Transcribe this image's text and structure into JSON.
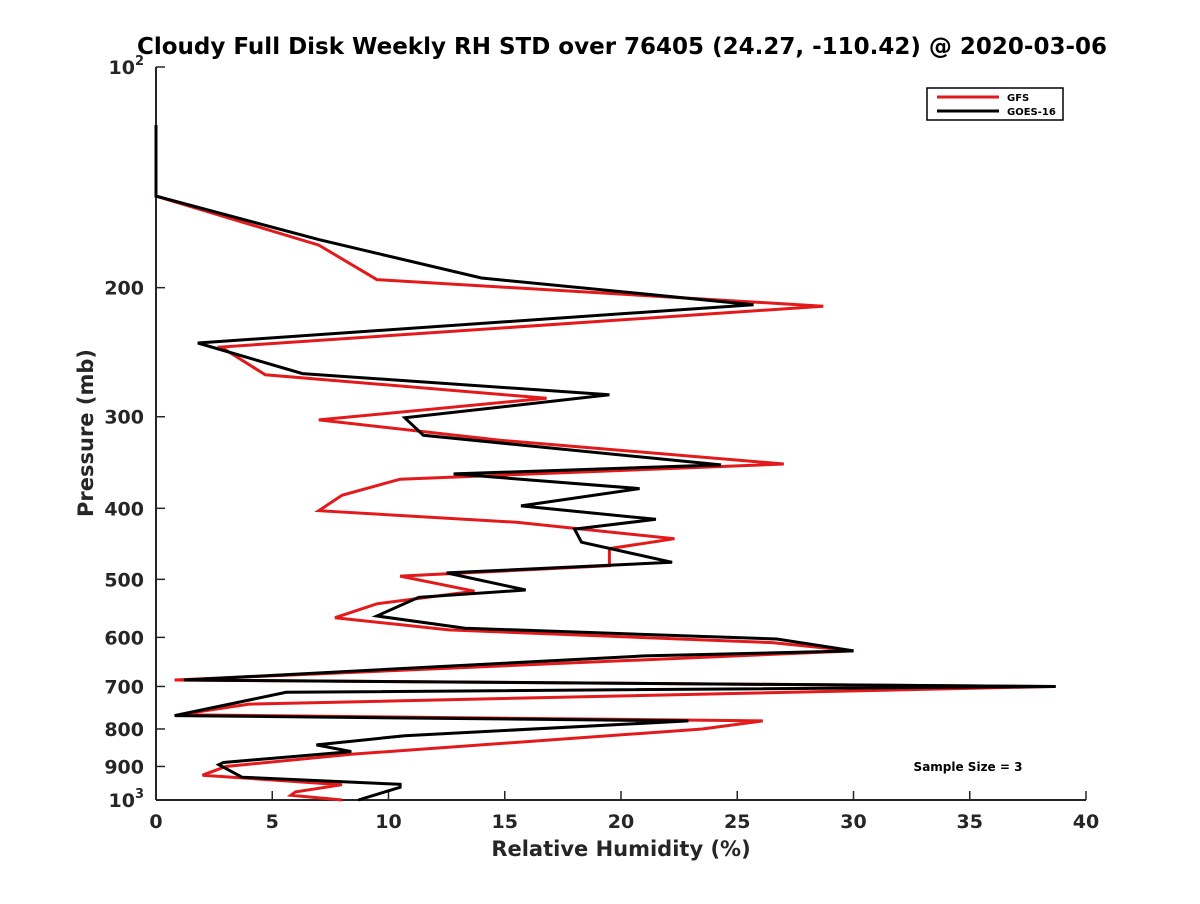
{
  "chart_data": {
    "type": "line",
    "title": "Cloudy Full Disk Weekly RH STD over 76405 (24.27, -110.42) @ 2020-03-06",
    "xlabel": "Relative Humidity (%)",
    "ylabel": "Pressure (mb)",
    "xlim": [
      0,
      40
    ],
    "ylim": [
      100,
      1000
    ],
    "y_scale": "log",
    "y_reversed": true,
    "x_ticks": [
      0,
      5,
      10,
      15,
      20,
      25,
      30,
      35,
      40
    ],
    "x_tick_labels": [
      "0",
      "5",
      "10",
      "15",
      "20",
      "25",
      "30",
      "35",
      "40"
    ],
    "y_ticks": [
      100,
      200,
      300,
      400,
      500,
      600,
      700,
      800,
      900,
      1000
    ],
    "y_tick_labels": [
      {
        "base": "10",
        "exp": "2"
      },
      {
        "base": "200",
        "exp": ""
      },
      {
        "base": "300",
        "exp": ""
      },
      {
        "base": "400",
        "exp": ""
      },
      {
        "base": "500",
        "exp": ""
      },
      {
        "base": "600",
        "exp": ""
      },
      {
        "base": "700",
        "exp": ""
      },
      {
        "base": "800",
        "exp": ""
      },
      {
        "base": "900",
        "exp": ""
      },
      {
        "base": "10",
        "exp": "3"
      }
    ],
    "grid": false,
    "legend_position": "top-right",
    "annotation": "Sample Size = 3",
    "series": [
      {
        "name": "GFS",
        "color": "#e31a1c",
        "points": [
          {
            "x": 0,
            "y": 120
          },
          {
            "x": 0,
            "y": 150
          },
          {
            "x": 7.0,
            "y": 175
          },
          {
            "x": 9.5,
            "y": 195
          },
          {
            "x": 28.7,
            "y": 212
          },
          {
            "x": 2.8,
            "y": 241
          },
          {
            "x": 4.7,
            "y": 263
          },
          {
            "x": 16.8,
            "y": 283
          },
          {
            "x": 7.0,
            "y": 303
          },
          {
            "x": 14.8,
            "y": 323
          },
          {
            "x": 27.0,
            "y": 348
          },
          {
            "x": 10.5,
            "y": 365
          },
          {
            "x": 8.0,
            "y": 384
          },
          {
            "x": 7.0,
            "y": 403
          },
          {
            "x": 15.5,
            "y": 418
          },
          {
            "x": 22.3,
            "y": 440
          },
          {
            "x": 19.5,
            "y": 454
          },
          {
            "x": 19.5,
            "y": 479
          },
          {
            "x": 10.5,
            "y": 495
          },
          {
            "x": 13.7,
            "y": 519
          },
          {
            "x": 9.5,
            "y": 540
          },
          {
            "x": 7.7,
            "y": 564
          },
          {
            "x": 12.6,
            "y": 586
          },
          {
            "x": 26.5,
            "y": 610
          },
          {
            "x": 30.0,
            "y": 626
          },
          {
            "x": 17.0,
            "y": 652
          },
          {
            "x": 0.8,
            "y": 686
          },
          {
            "x": 38.6,
            "y": 700
          },
          {
            "x": 4.0,
            "y": 740
          },
          {
            "x": 1.0,
            "y": 765
          },
          {
            "x": 26.1,
            "y": 780
          },
          {
            "x": 23.5,
            "y": 800
          },
          {
            "x": 8.4,
            "y": 866
          },
          {
            "x": 3.0,
            "y": 900
          },
          {
            "x": 2.0,
            "y": 925
          },
          {
            "x": 8.0,
            "y": 953
          },
          {
            "x": 6.0,
            "y": 975
          },
          {
            "x": 5.8,
            "y": 985
          },
          {
            "x": 8.0,
            "y": 1000
          }
        ]
      },
      {
        "name": "GOES-16",
        "color": "#000000",
        "points": [
          {
            "x": 0,
            "y": 120
          },
          {
            "x": 0,
            "y": 150
          },
          {
            "x": 7.0,
            "y": 172
          },
          {
            "x": 14.0,
            "y": 194
          },
          {
            "x": 25.7,
            "y": 211
          },
          {
            "x": 1.8,
            "y": 238
          },
          {
            "x": 6.3,
            "y": 262
          },
          {
            "x": 19.5,
            "y": 280
          },
          {
            "x": 10.7,
            "y": 301
          },
          {
            "x": 11.5,
            "y": 318
          },
          {
            "x": 24.3,
            "y": 349
          },
          {
            "x": 12.8,
            "y": 359
          },
          {
            "x": 20.8,
            "y": 376
          },
          {
            "x": 15.7,
            "y": 397
          },
          {
            "x": 21.5,
            "y": 414
          },
          {
            "x": 18.0,
            "y": 427
          },
          {
            "x": 18.3,
            "y": 445
          },
          {
            "x": 22.2,
            "y": 474
          },
          {
            "x": 12.5,
            "y": 490
          },
          {
            "x": 15.9,
            "y": 517
          },
          {
            "x": 11.3,
            "y": 529
          },
          {
            "x": 9.5,
            "y": 561
          },
          {
            "x": 13.3,
            "y": 583
          },
          {
            "x": 26.7,
            "y": 603
          },
          {
            "x": 30.0,
            "y": 626
          },
          {
            "x": 21.0,
            "y": 636
          },
          {
            "x": 1.2,
            "y": 686
          },
          {
            "x": 38.7,
            "y": 700
          },
          {
            "x": 5.6,
            "y": 713
          },
          {
            "x": 0.8,
            "y": 767
          },
          {
            "x": 22.9,
            "y": 780
          },
          {
            "x": 10.7,
            "y": 817
          },
          {
            "x": 6.9,
            "y": 841
          },
          {
            "x": 8.4,
            "y": 859
          },
          {
            "x": 2.9,
            "y": 889
          },
          {
            "x": 2.7,
            "y": 895
          },
          {
            "x": 3.7,
            "y": 931
          },
          {
            "x": 10.5,
            "y": 952
          },
          {
            "x": 10.5,
            "y": 961
          },
          {
            "x": 8.7,
            "y": 1000
          }
        ]
      }
    ]
  }
}
